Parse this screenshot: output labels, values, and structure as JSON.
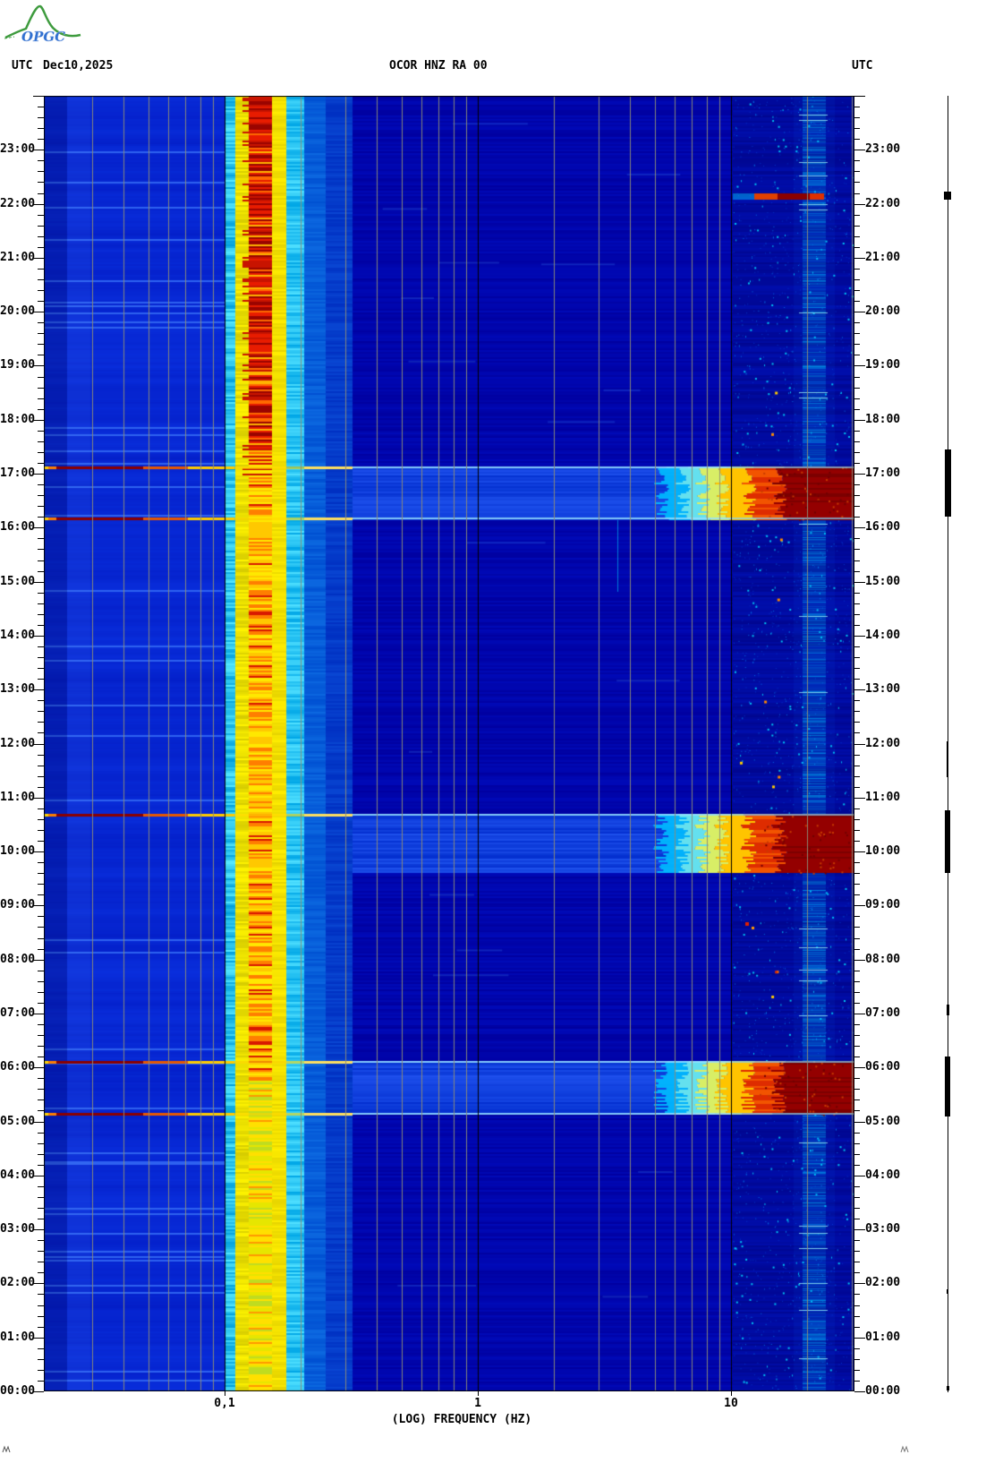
{
  "header": {
    "logo_text": "OPGC",
    "timezone_left": "UTC",
    "date": "Dec10,2025",
    "station": "OCOR HNZ RA 00",
    "timezone_right": "UTC"
  },
  "chart_data": {
    "type": "heatmap",
    "subtype": "seismic-spectrogram",
    "title": "OCOR HNZ RA 00",
    "date_utc": "Dec10,2025",
    "xlabel": "(LOG) FREQUENCY (HZ)",
    "x_scale": "log10",
    "freq_min_hz": 0.02,
    "freq_max_hz": 30,
    "x_ticks": [
      {
        "f": 0.1,
        "label": "0,1"
      },
      {
        "f": 1,
        "label": "1"
      },
      {
        "f": 10,
        "label": "10"
      }
    ],
    "x_gridlines_hz": [
      0.03,
      0.04,
      0.05,
      0.06,
      0.07,
      0.08,
      0.09,
      0.2,
      0.3,
      0.4,
      0.5,
      0.6,
      0.7,
      0.8,
      0.9,
      2,
      3,
      4,
      5,
      6,
      7,
      8,
      9,
      20,
      30
    ],
    "x_decade_lines_hz": [
      0.1,
      1,
      10
    ],
    "time_axis": "UTC, 00:00 bottom to 24:00 top",
    "time_span_hours": 24,
    "minor_tick_minutes": 12,
    "hour_labels": [
      "00:00",
      "01:00",
      "02:00",
      "03:00",
      "04:00",
      "05:00",
      "06:00",
      "07:00",
      "08:00",
      "09:00",
      "10:00",
      "11:00",
      "12:00",
      "13:00",
      "14:00",
      "15:00",
      "16:00",
      "17:00",
      "18:00",
      "19:00",
      "20:00",
      "21:00",
      "22:00",
      "23:00"
    ],
    "colormap": "jet",
    "palette": {
      "base_blue": "#0000A8",
      "left_blue": "#0D38E8",
      "band_cyan": "#00C4FF",
      "band_yellow": "#FFE400",
      "band_orange": "#FF8A00",
      "band_red": "#DC2800",
      "band_dark_red": "#8B0000",
      "grid_gray": "#8C8C78",
      "grid_black": "#000000",
      "event_band_blue": "#1E50EC"
    },
    "microseism_band": {
      "f_low_hz": 0.1,
      "f_high_hz": 0.3,
      "core_f_hz": [
        0.13,
        0.2
      ],
      "note": "continuous high-energy band, red/dark-red near top of day, yellow-green near 00:00-04:00"
    },
    "events": [
      {
        "start_utc": "16:09",
        "end_utc": "17:08",
        "start_h": 16.15,
        "end_h": 17.13,
        "blob_f_low_hz": 6,
        "start_line": true,
        "end_line": true
      },
      {
        "start_utc": "09:36",
        "end_utc": "10:42",
        "start_h": 9.6,
        "end_h": 10.7,
        "blob_f_low_hz": 6,
        "start_line": false,
        "end_line": true
      },
      {
        "start_utc": "05:07",
        "end_utc": "06:07",
        "start_h": 5.12,
        "end_h": 6.12,
        "blob_f_low_hz": 6,
        "start_line": true,
        "end_line": true
      }
    ],
    "minor_event": {
      "time_utc": "22:06",
      "h": 22.1,
      "f_range_hz": [
        12,
        25
      ]
    },
    "persistent_cyan_streak_hz": [
      18,
      23
    ],
    "trace_marks": [
      {
        "start": 22.08,
        "end": 22.22,
        "w": 8
      },
      {
        "start": 16.2,
        "end": 17.45,
        "w": 7
      },
      {
        "start": 11.38,
        "end": 12.04,
        "w": 2
      },
      {
        "start": 9.6,
        "end": 10.77,
        "w": 6
      },
      {
        "start": 6.97,
        "end": 7.17,
        "w": 3
      },
      {
        "start": 5.1,
        "end": 6.2,
        "w": 6
      },
      {
        "start": 1.81,
        "end": 1.89,
        "w": 2
      },
      {
        "start": 0.02,
        "end": 0.1,
        "w": 3
      }
    ]
  }
}
